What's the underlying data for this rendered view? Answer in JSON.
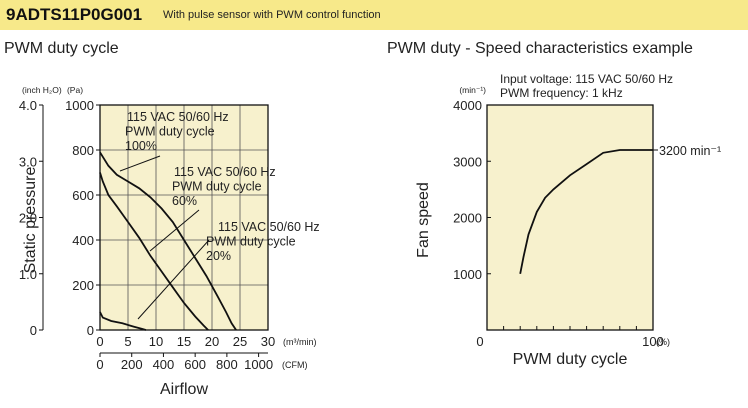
{
  "header": {
    "model": "9ADTS11P0G001",
    "subtitle": "With pulse sensor with PWM control function"
  },
  "chart_data": [
    {
      "type": "line",
      "title": "PWM duty cycle",
      "xlabel": "Airflow",
      "ylabel": "Static pressure",
      "x_unit": "(m³/min)",
      "x_unit_secondary": "(CFM)",
      "y_unit_primary": "(Pa)",
      "y_unit_secondary": "(inch H₂O)",
      "xlim": [
        0,
        30
      ],
      "ylim": [
        0,
        1000
      ],
      "x_ticks": [
        "0",
        "5",
        "10",
        "15",
        "20",
        "25",
        "30"
      ],
      "x_ticks_secondary": [
        "0",
        "200",
        "400",
        "600",
        "800",
        "1000"
      ],
      "y_ticks": [
        "0",
        "200",
        "400",
        "600",
        "800",
        "1000"
      ],
      "y_ticks_secondary": [
        "0",
        "1.0",
        "2.0",
        "3.0",
        "4.0"
      ],
      "grid": true,
      "series": [
        {
          "name": "100%",
          "annotation": [
            "115 VAC  50/60 Hz",
            "PWM duty cycle",
            "100%"
          ],
          "x": [
            0,
            0.5,
            1.5,
            3,
            5,
            7,
            9,
            11,
            13,
            15,
            17,
            19,
            21,
            22.5,
            23.5,
            24.3
          ],
          "y": [
            790,
            770,
            730,
            690,
            660,
            630,
            590,
            540,
            480,
            400,
            320,
            240,
            150,
            80,
            30,
            0
          ]
        },
        {
          "name": "60%",
          "annotation": [
            "115 VAC  50/60 Hz",
            "PWM duty cycle",
            "60%"
          ],
          "x": [
            0,
            0.5,
            1.5,
            3,
            5,
            7,
            9,
            11,
            13,
            15,
            17,
            18.5,
            19.3
          ],
          "y": [
            700,
            660,
            600,
            550,
            480,
            410,
            330,
            260,
            190,
            120,
            60,
            20,
            0
          ]
        },
        {
          "name": "20%",
          "annotation": [
            "115 VAC  50/60 Hz",
            "PWM duty cycle",
            "20%"
          ],
          "x": [
            0,
            0.5,
            2,
            4,
            6,
            7.5,
            8.2
          ],
          "y": [
            80,
            55,
            40,
            30,
            15,
            5,
            0
          ]
        }
      ]
    },
    {
      "type": "line",
      "title": "PWM duty - Speed characteristics example",
      "xlabel": "PWM duty cycle",
      "ylabel": "Fan speed",
      "x_unit": "(%)",
      "y_unit": "(min⁻¹)",
      "xlim": [
        0,
        100
      ],
      "ylim": [
        0,
        4000
      ],
      "x_ticks": [
        "0",
        "100"
      ],
      "y_ticks": [
        "1000",
        "2000",
        "3000",
        "4000"
      ],
      "grid": false,
      "notes": [
        "Input voltage: 115 VAC  50/60 Hz",
        "PWM frequency: 1 kHz"
      ],
      "end_label": "3200 min⁻¹",
      "series": [
        {
          "name": "speed",
          "x": [
            20,
            22,
            25,
            30,
            35,
            40,
            50,
            60,
            70,
            80,
            82,
            100
          ],
          "y": [
            1000,
            1300,
            1700,
            2100,
            2350,
            2500,
            2750,
            2950,
            3150,
            3200,
            3200,
            3200
          ]
        }
      ]
    }
  ]
}
